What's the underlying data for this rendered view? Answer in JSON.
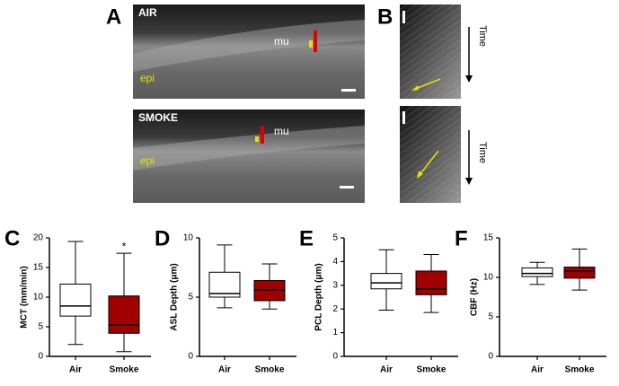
{
  "images": {
    "panel_a": {
      "letter": "A",
      "top_label": "AIR",
      "bottom_label": "SMOKE",
      "mu_top": "mu",
      "mu_bottom": "mu",
      "epi_top": "epi",
      "epi_bottom": "epi"
    },
    "panel_b": {
      "letter": "B",
      "time_top": "Time",
      "time_bottom": "Time"
    }
  },
  "chart_data": [
    {
      "type": "box",
      "letter": "C",
      "ylabel": "MCT (mm/min)",
      "categories": [
        "Air",
        "Smoke"
      ],
      "colors": [
        "#ffffff",
        "#a00000"
      ],
      "ylim": [
        0,
        20
      ],
      "yticks": [
        0,
        5,
        10,
        15,
        20
      ],
      "annotation": "*",
      "boxes": [
        {
          "min": 2,
          "q1": 6.8,
          "median": 8.5,
          "q3": 12.2,
          "max": 19.4
        },
        {
          "min": 0.8,
          "q1": 3.9,
          "median": 5.3,
          "q3": 10.2,
          "max": 17.4
        }
      ]
    },
    {
      "type": "box",
      "letter": "D",
      "ylabel": "ASL Depth (μm)",
      "categories": [
        "Air",
        "Smoke"
      ],
      "colors": [
        "#ffffff",
        "#a00000"
      ],
      "ylim": [
        0,
        10
      ],
      "yticks": [
        0,
        5,
        10
      ],
      "boxes": [
        {
          "min": 4.1,
          "q1": 5.0,
          "median": 5.3,
          "q3": 7.1,
          "max": 9.4
        },
        {
          "min": 4.0,
          "q1": 4.7,
          "median": 5.6,
          "q3": 6.4,
          "max": 7.8
        }
      ]
    },
    {
      "type": "box",
      "letter": "E",
      "ylabel": "PCL Depth (μm)",
      "categories": [
        "Air",
        "Smoke"
      ],
      "colors": [
        "#ffffff",
        "#a00000"
      ],
      "ylim": [
        0,
        5
      ],
      "yticks": [
        0,
        1,
        2,
        3,
        4,
        5
      ],
      "boxes": [
        {
          "min": 1.95,
          "q1": 2.85,
          "median": 3.1,
          "q3": 3.5,
          "max": 4.5
        },
        {
          "min": 1.85,
          "q1": 2.6,
          "median": 2.85,
          "q3": 3.6,
          "max": 4.3
        }
      ]
    },
    {
      "type": "box",
      "letter": "F",
      "ylabel": "CBF (Hz)",
      "categories": [
        "Air",
        "Smoke"
      ],
      "colors": [
        "#ffffff",
        "#a00000"
      ],
      "ylim": [
        0,
        15
      ],
      "yticks": [
        0,
        5,
        10,
        15
      ],
      "boxes": [
        {
          "min": 9.1,
          "q1": 10.1,
          "median": 10.5,
          "q3": 11.2,
          "max": 11.9
        },
        {
          "min": 8.4,
          "q1": 9.9,
          "median": 10.8,
          "q3": 11.3,
          "max": 13.6
        }
      ]
    }
  ]
}
